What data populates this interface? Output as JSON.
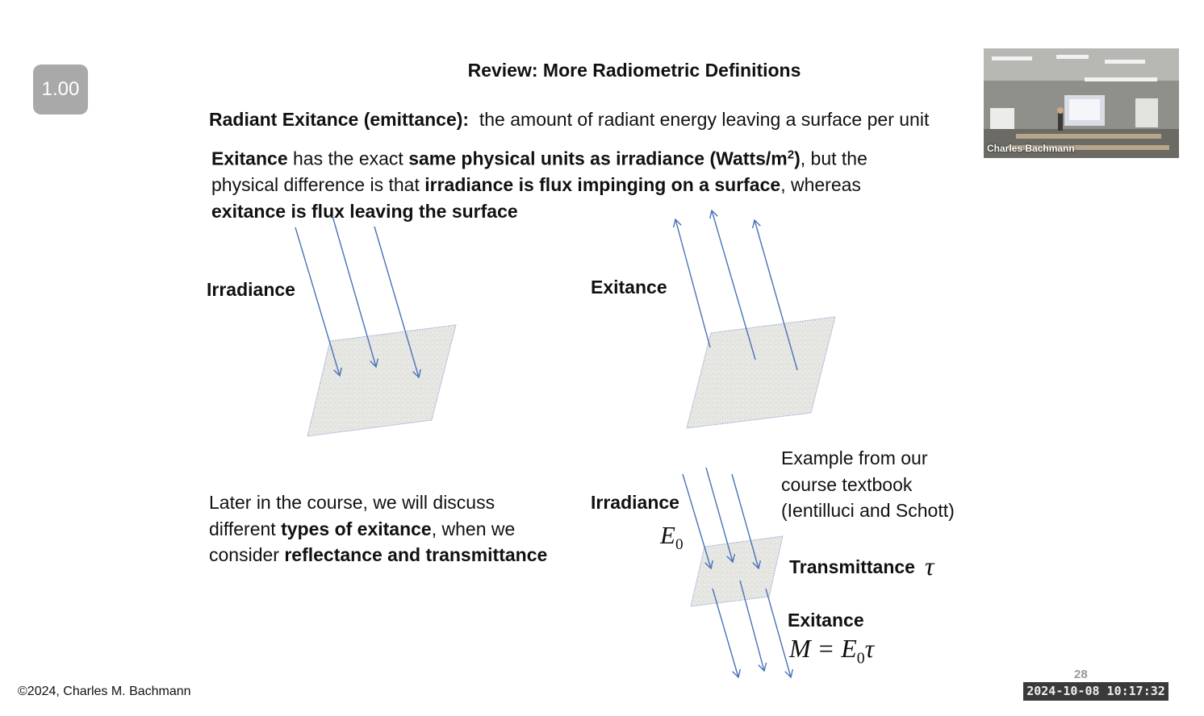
{
  "player": {
    "speed_label": "1.00"
  },
  "slide": {
    "title": "Review: More Radiometric Definitions",
    "definition": {
      "term": "Radiant Exitance (emittance):",
      "text": "the amount of radiant energy leaving a surface per unit"
    },
    "explanation": {
      "p1_b": "Exitance",
      "p1_t": " has the exact ",
      "p1_b2": "same physical units as irradiance (Watts/m",
      "p1_sup": "2",
      "p1_b3": ")",
      "p1_t2": ", but the",
      "p2_t": "physical difference  is that ",
      "p2_b": "irradiance is flux impinging on a surface",
      "p2_t2": ", whereas",
      "p3_b": "exitance is flux leaving the surface"
    },
    "labels": {
      "irradiance_top": "Irradiance",
      "exitance_top": "Exitance",
      "irradiance_bottom": "Irradiance",
      "transmittance": "Transmittance",
      "exitance_bottom": "Exitance"
    },
    "math": {
      "e0_base": "E",
      "e0_sub": "0",
      "tau": "τ",
      "eq_lhs": "M = E",
      "eq_sub": "0",
      "eq_rhs": "τ"
    },
    "later": {
      "l1": "Later in the course, we will discuss",
      "l2_t": "different ",
      "l2_b": "types of exitance",
      "l2_t2": ", when we",
      "l3_t": "consider ",
      "l3_b": "reflectance and transmittance"
    },
    "example": {
      "l1": "Example from our",
      "l2": "course textbook",
      "l3": "(Ientilluci and Schott)"
    },
    "page_number": "28",
    "copyright": "©2024, Charles M. Bachmann"
  },
  "video": {
    "presenter_name": "Charles Bachmann"
  },
  "timestamp": "2024-10-08  10:17:32",
  "colors": {
    "arrow": "#4a72b8",
    "surface": "#e6e6e3",
    "speed_bg": "#a9a9a9"
  }
}
